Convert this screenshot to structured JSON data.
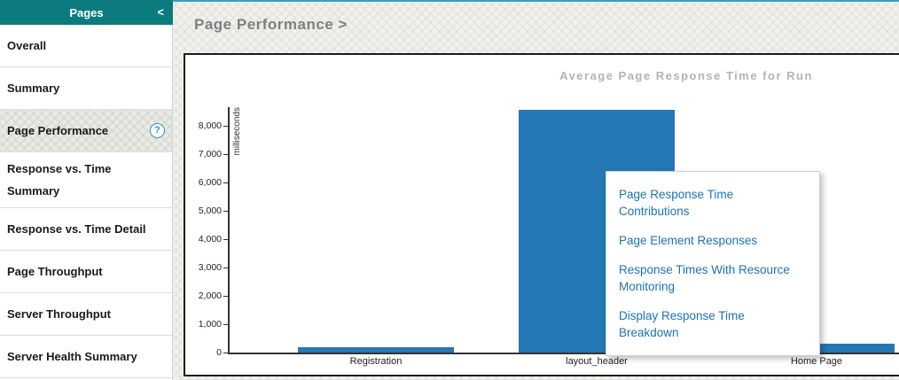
{
  "colors": {
    "accent_teal": "#0b7b7f",
    "bar_blue": "#2478b4",
    "link_blue": "#1d72b8",
    "title_gray": "#7f7f7f"
  },
  "sidebar": {
    "header": {
      "title": "Pages",
      "collapse_glyph": "<"
    },
    "help_icon_glyph": "?",
    "items": [
      {
        "label": "Overall",
        "selected": false,
        "help_icon": false
      },
      {
        "label": "Summary",
        "selected": false,
        "help_icon": false
      },
      {
        "label": "Page Performance",
        "selected": true,
        "help_icon": true
      },
      {
        "label": "Response vs. Time Summary",
        "selected": false,
        "help_icon": false
      },
      {
        "label": "Response vs. Time Detail",
        "selected": false,
        "help_icon": false
      },
      {
        "label": "Page Throughput",
        "selected": false,
        "help_icon": false
      },
      {
        "label": "Server Throughput",
        "selected": false,
        "help_icon": false
      },
      {
        "label": "Server Health Summary",
        "selected": false,
        "help_icon": false
      }
    ]
  },
  "breadcrumb": {
    "title": "Page Performance",
    "arrow": ">"
  },
  "chart_data": {
    "type": "bar",
    "title": "Average Page Response Time for Run",
    "xlabel": "",
    "ylabel": "milliseconds",
    "categories": [
      "Registration",
      "layout_header",
      "Home Page"
    ],
    "values": [
      200,
      8560,
      320
    ],
    "ylim": [
      0,
      8650
    ],
    "yticks": [
      0,
      1000,
      2000,
      3000,
      4000,
      5000,
      6000,
      7000,
      8000
    ],
    "ytick_labels": [
      "0",
      "1,000",
      "2,000",
      "3,000",
      "4,000",
      "5,000",
      "6,000",
      "7,000",
      "8,000"
    ],
    "grid": false,
    "legend": false,
    "bar_color": "#2478b4"
  },
  "context_menu": {
    "items": [
      "Page Response Time Contributions",
      "Page Element Responses",
      "Response Times With Resource Monitoring",
      "Display Response Time Breakdown"
    ]
  }
}
